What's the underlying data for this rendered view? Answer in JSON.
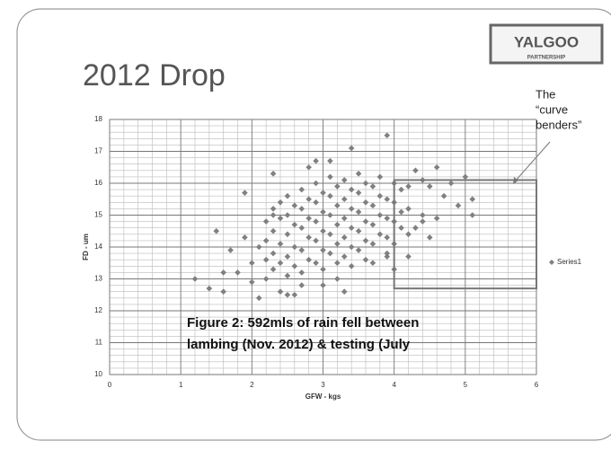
{
  "slide": {
    "title": "2012 Drop",
    "logo": {
      "name": "YALGOO",
      "sub": "PARTNERSHIP"
    }
  },
  "chart_data": {
    "type": "scatter",
    "xlabel": "GFW - kgs",
    "ylabel": "FD - um",
    "xlim": [
      0,
      6
    ],
    "xticks": [
      0,
      1,
      2,
      3,
      4,
      5,
      6
    ],
    "ylim": [
      10,
      18
    ],
    "yticks": [
      10,
      11,
      12,
      13,
      14,
      15,
      16,
      17,
      18
    ],
    "grid": true,
    "minor_grid": true,
    "legend": "right",
    "annotations": [
      "The",
      "“curve",
      "benders”"
    ],
    "caption": [
      "Figure 2: 592mls of rain fell between",
      "lambing (Nov. 2012) & testing (July"
    ],
    "highlight": {
      "x": [
        4,
        6
      ],
      "y": [
        12.7,
        16.1
      ]
    },
    "series": [
      {
        "name": "Series1",
        "color": "#808080",
        "x": [
          1.2,
          1.4,
          1.5,
          1.6,
          1.6,
          1.7,
          1.8,
          1.9,
          1.9,
          2.0,
          2.0,
          2.1,
          2.1,
          2.2,
          2.3,
          2.3,
          2.4,
          2.5,
          2.6,
          2.7,
          2.8,
          2.9,
          3.0,
          3.1,
          3.3,
          3.4,
          3.9,
          3.9,
          4.2,
          4.4,
          4.6,
          4.8,
          5.0,
          5.1,
          5.1,
          4.9,
          4.7,
          4.6,
          4.5,
          4.3,
          4.0,
          4.1,
          4.3,
          4.5,
          4.2,
          2.2,
          2.2,
          2.2,
          2.3,
          2.3,
          2.3,
          2.3,
          2.4,
          2.4,
          2.4,
          2.4,
          2.5,
          2.5,
          2.5,
          2.5,
          2.5,
          2.6,
          2.6,
          2.6,
          2.6,
          2.7,
          2.7,
          2.7,
          2.7,
          2.7,
          2.8,
          2.8,
          2.8,
          2.8,
          2.9,
          2.9,
          2.9,
          2.9,
          2.9,
          3.0,
          3.0,
          3.0,
          3.0,
          3.0,
          3.1,
          3.1,
          3.1,
          3.1,
          3.1,
          3.2,
          3.2,
          3.2,
          3.2,
          3.2,
          3.2,
          3.3,
          3.3,
          3.3,
          3.3,
          3.3,
          3.4,
          3.4,
          3.4,
          3.4,
          3.4,
          3.5,
          3.5,
          3.5,
          3.5,
          3.5,
          3.6,
          3.6,
          3.6,
          3.6,
          3.6,
          3.7,
          3.7,
          3.7,
          3.7,
          3.7,
          3.8,
          3.8,
          3.8,
          3.8,
          3.9,
          3.9,
          3.9,
          3.9,
          4.0,
          4.0,
          4.0,
          4.0,
          4.1,
          4.1,
          4.2,
          4.2,
          4.4,
          4.4
        ],
        "values": [
          13.0,
          12.7,
          14.5,
          13.2,
          12.6,
          13.9,
          13.2,
          15.7,
          14.3,
          13.5,
          12.9,
          12.4,
          14.0,
          13.0,
          16.3,
          15.2,
          12.6,
          12.5,
          12.5,
          12.8,
          16.5,
          16.7,
          12.8,
          16.7,
          12.6,
          17.1,
          17.5,
          13.8,
          13.7,
          15.0,
          16.5,
          16.0,
          16.2,
          15.5,
          15.0,
          15.3,
          15.6,
          14.9,
          14.3,
          14.6,
          14.1,
          15.8,
          16.4,
          15.9,
          15.2,
          14.8,
          14.2,
          13.6,
          15.0,
          14.5,
          13.8,
          13.3,
          15.4,
          14.9,
          14.1,
          13.5,
          15.6,
          15.0,
          14.4,
          13.7,
          13.1,
          15.3,
          14.7,
          14.0,
          13.4,
          15.8,
          15.2,
          14.6,
          13.9,
          13.2,
          15.5,
          14.9,
          14.3,
          13.6,
          16.0,
          15.4,
          14.8,
          14.2,
          13.5,
          15.7,
          15.1,
          14.5,
          13.9,
          13.3,
          16.2,
          15.6,
          15.0,
          14.4,
          13.8,
          15.9,
          15.3,
          14.7,
          14.1,
          13.5,
          13.0,
          16.1,
          15.5,
          14.9,
          14.3,
          13.7,
          15.8,
          15.2,
          14.6,
          14.0,
          13.4,
          16.3,
          15.7,
          15.1,
          14.5,
          13.9,
          16.0,
          15.4,
          14.8,
          14.2,
          13.6,
          15.9,
          15.3,
          14.7,
          14.1,
          13.5,
          16.2,
          15.6,
          15.0,
          14.4,
          15.5,
          14.9,
          14.3,
          13.7,
          16.0,
          15.4,
          14.8,
          13.3,
          15.1,
          14.6,
          15.9,
          14.4,
          16.1,
          14.8
        ]
      }
    ]
  }
}
